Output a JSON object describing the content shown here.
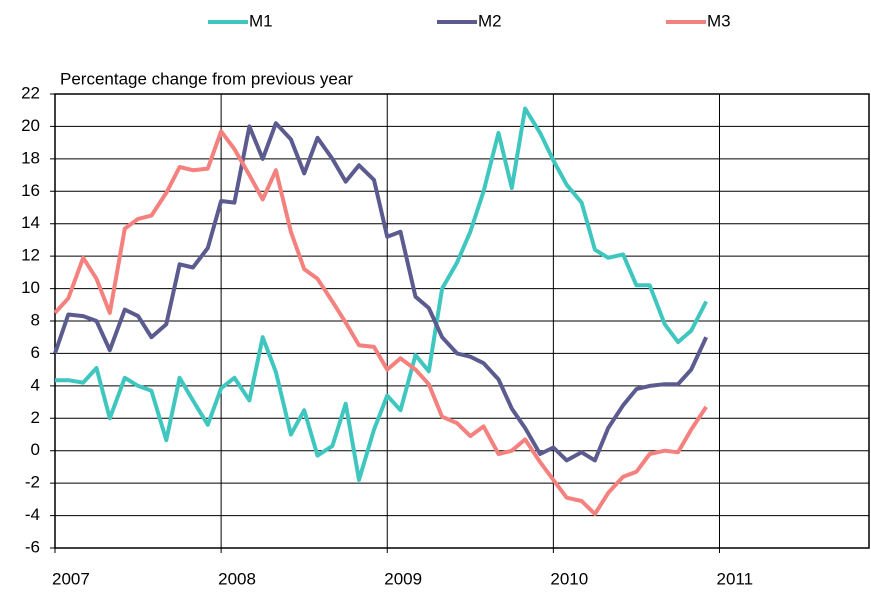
{
  "chart_data": {
    "type": "line",
    "y_label": "Percentage change from previous year",
    "x": [
      2007.0,
      2007.08,
      2007.17,
      2007.25,
      2007.33,
      2007.42,
      2007.5,
      2007.58,
      2007.67,
      2007.75,
      2007.83,
      2007.92,
      2008.0,
      2008.08,
      2008.17,
      2008.25,
      2008.33,
      2008.42,
      2008.5,
      2008.58,
      2008.67,
      2008.75,
      2008.83,
      2008.92,
      2009.0,
      2009.08,
      2009.17,
      2009.25,
      2009.33,
      2009.42,
      2009.5,
      2009.58,
      2009.67,
      2009.75,
      2009.83,
      2009.92,
      2010.0,
      2010.08,
      2010.17,
      2010.25,
      2010.33,
      2010.42,
      2010.5,
      2010.58,
      2010.67,
      2010.75,
      2010.83,
      2010.92
    ],
    "series": [
      {
        "name": "M1",
        "color": "#3fc7bf",
        "values": [
          4.35,
          4.35,
          4.2,
          5.1,
          2.0,
          4.5,
          4.0,
          3.7,
          0.65,
          4.5,
          3.1,
          1.6,
          3.85,
          4.5,
          3.1,
          7.0,
          4.85,
          1.0,
          2.5,
          -0.3,
          0.3,
          2.9,
          -1.8,
          1.3,
          3.4,
          2.5,
          5.9,
          4.9,
          10.0,
          11.6,
          13.5,
          16.0,
          19.6,
          16.2,
          21.1,
          19.6,
          17.9,
          16.4,
          15.3,
          12.4,
          11.9,
          12.1,
          10.2,
          10.2,
          7.8,
          6.7,
          7.4,
          9.2
        ]
      },
      {
        "name": "M2",
        "color": "#5b5b8f",
        "values": [
          6.0,
          8.4,
          8.3,
          8.0,
          6.2,
          8.7,
          8.3,
          7.0,
          7.8,
          11.5,
          11.3,
          12.5,
          15.4,
          15.3,
          20.0,
          18.0,
          20.2,
          19.2,
          17.1,
          19.3,
          18.0,
          16.6,
          17.6,
          16.7,
          13.2,
          13.5,
          9.5,
          8.8,
          7.0,
          6.0,
          5.8,
          5.4,
          4.4,
          2.6,
          1.4,
          -0.2,
          0.2,
          -0.6,
          -0.1,
          -0.6,
          1.4,
          2.8,
          3.8,
          4.0,
          4.1,
          4.1,
          5.0,
          7.0
        ]
      },
      {
        "name": "M3",
        "color": "#f4817e",
        "values": [
          8.5,
          9.4,
          11.9,
          10.6,
          8.5,
          13.7,
          14.3,
          14.5,
          15.9,
          17.5,
          17.3,
          17.4,
          19.7,
          18.6,
          17.0,
          15.5,
          17.3,
          13.5,
          11.2,
          10.6,
          9.2,
          7.9,
          6.5,
          6.4,
          5.0,
          5.7,
          5.0,
          4.1,
          2.1,
          1.7,
          0.9,
          1.5,
          -0.2,
          0.0,
          0.7,
          -0.7,
          -1.8,
          -2.9,
          -3.1,
          -3.9,
          -2.6,
          -1.6,
          -1.3,
          -0.2,
          0.0,
          -0.1,
          1.3,
          2.7
        ]
      }
    ],
    "xlim": [
      2007,
      2011.9
    ],
    "xticks": [
      2007,
      2008,
      2009,
      2010,
      2011
    ],
    "ylim": [
      -6,
      22
    ],
    "yticks": [
      -6,
      -4,
      -2,
      0,
      2,
      4,
      6,
      8,
      10,
      12,
      14,
      16,
      18,
      20,
      22
    ],
    "grid": true,
    "legend": "top"
  }
}
